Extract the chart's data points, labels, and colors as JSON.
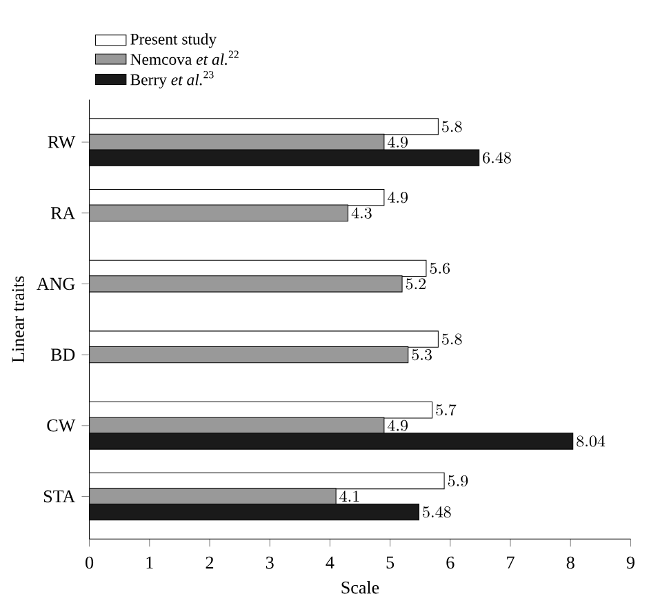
{
  "chart_data": {
    "type": "bar",
    "orientation": "horizontal",
    "xlabel": "Scale",
    "ylabel": "Linear traits",
    "categories": [
      "RW",
      "RA",
      "ANG",
      "BD",
      "CW",
      "STA"
    ],
    "series": [
      {
        "name": "Present study",
        "color": "#ffffff",
        "values": [
          5.8,
          4.9,
          5.6,
          5.8,
          5.7,
          5.9
        ]
      },
      {
        "name": "Nemcova *et al.*$^{22}$",
        "color": "#999999",
        "values": [
          4.9,
          4.3,
          5.2,
          5.3,
          4.9,
          4.1
        ]
      },
      {
        "name": "Berry *et al.*$^{23}$",
        "color": "#1a1a1a",
        "values": [
          6.48,
          null,
          null,
          null,
          8.04,
          5.48
        ]
      }
    ],
    "xlim": [
      0,
      9
    ],
    "xticks": [
      0,
      1,
      2,
      3,
      4,
      5,
      6,
      7,
      8,
      9
    ],
    "data_labels": true,
    "legend": "top left",
    "grid": false
  }
}
